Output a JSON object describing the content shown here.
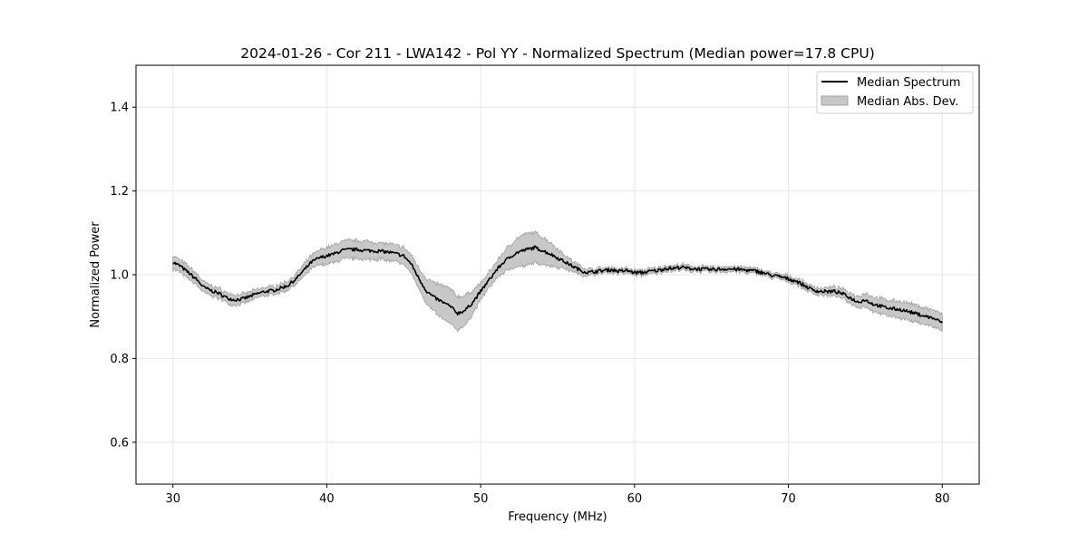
{
  "chart_data": {
    "type": "line",
    "title": "2024-01-26 - Cor 211 - LWA142 - Pol YY - Normalized Spectrum (Median power=17.8 CPU)",
    "xlabel": "Frequency (MHz)",
    "ylabel": "Normalized Power",
    "xlim": [
      27.6,
      82.4
    ],
    "ylim": [
      0.5,
      1.5
    ],
    "x_ticks": [
      30,
      40,
      50,
      60,
      70,
      80
    ],
    "y_ticks": [
      0.6,
      0.8,
      1.0,
      1.2,
      1.4
    ],
    "x_tick_labels": [
      "30",
      "40",
      "50",
      "60",
      "70",
      "80"
    ],
    "y_tick_labels": [
      "0.6",
      "0.8",
      "1.0",
      "1.2",
      "1.4"
    ],
    "grid": true,
    "legend_position": "top-right",
    "colors": {
      "line": "#000000",
      "band": "#c8c8c8",
      "band_edge": "#a0a0a0",
      "grid": "#e6e6e6"
    },
    "series": [
      {
        "name": "Median Spectrum",
        "x": [
          30,
          30.5,
          31,
          31.5,
          32,
          32.5,
          33,
          33.5,
          34,
          34.5,
          35,
          35.5,
          36,
          36.5,
          37,
          37.5,
          38,
          38.5,
          39,
          39.5,
          40,
          40.5,
          41,
          41.5,
          42,
          42.5,
          43,
          43.5,
          44,
          44.5,
          45,
          45.5,
          46,
          46.5,
          47,
          47.5,
          48,
          48.5,
          49,
          49.5,
          50,
          50.5,
          51,
          51.5,
          52,
          52.5,
          53,
          53.5,
          54,
          54.5,
          55,
          55.5,
          56,
          56.5,
          57,
          57.5,
          58,
          58.5,
          59,
          59.5,
          60,
          60.5,
          61,
          61.5,
          62,
          62.5,
          63,
          63.5,
          64,
          64.5,
          65,
          65.5,
          66,
          66.5,
          67,
          67.5,
          68,
          68.5,
          69,
          69.5,
          70,
          70.5,
          71,
          71.5,
          72,
          72.5,
          73,
          73.5,
          74,
          74.5,
          75,
          75.5,
          76,
          76.5,
          77,
          77.5,
          78,
          78.5,
          79,
          79.5,
          80
        ],
        "values": [
          1.03,
          1.02,
          1.005,
          0.99,
          0.97,
          0.962,
          0.955,
          0.945,
          0.94,
          0.942,
          0.948,
          0.955,
          0.96,
          0.962,
          0.968,
          0.975,
          0.99,
          1.01,
          1.03,
          1.04,
          1.045,
          1.05,
          1.058,
          1.06,
          1.06,
          1.058,
          1.057,
          1.056,
          1.054,
          1.05,
          1.045,
          1.025,
          0.99,
          0.96,
          0.945,
          0.935,
          0.925,
          0.908,
          0.915,
          0.935,
          0.96,
          0.985,
          1.01,
          1.03,
          1.045,
          1.055,
          1.06,
          1.065,
          1.058,
          1.05,
          1.04,
          1.03,
          1.02,
          1.01,
          1.005,
          1.008,
          1.01,
          1.012,
          1.008,
          1.01,
          1.005,
          1.005,
          1.008,
          1.01,
          1.015,
          1.015,
          1.018,
          1.015,
          1.014,
          1.013,
          1.012,
          1.013,
          1.014,
          1.013,
          1.012,
          1.01,
          1.008,
          1.003,
          0.998,
          0.995,
          0.99,
          0.985,
          0.975,
          0.965,
          0.96,
          0.96,
          0.96,
          0.955,
          0.945,
          0.935,
          0.94,
          0.93,
          0.925,
          0.92,
          0.918,
          0.915,
          0.91,
          0.905,
          0.9,
          0.895,
          0.885
        ]
      },
      {
        "name": "Median Abs. Dev.",
        "x": [
          30,
          30.5,
          31,
          31.5,
          32,
          32.5,
          33,
          33.5,
          34,
          34.5,
          35,
          35.5,
          36,
          36.5,
          37,
          37.5,
          38,
          38.5,
          39,
          39.5,
          40,
          40.5,
          41,
          41.5,
          42,
          42.5,
          43,
          43.5,
          44,
          44.5,
          45,
          45.5,
          46,
          46.5,
          47,
          47.5,
          48,
          48.5,
          49,
          49.5,
          50,
          50.5,
          51,
          51.5,
          52,
          52.5,
          53,
          53.5,
          54,
          54.5,
          55,
          55.5,
          56,
          56.5,
          57,
          57.5,
          58,
          58.5,
          59,
          59.5,
          60,
          60.5,
          61,
          61.5,
          62,
          62.5,
          63,
          63.5,
          64,
          64.5,
          65,
          65.5,
          66,
          66.5,
          67,
          67.5,
          68,
          68.5,
          69,
          69.5,
          70,
          70.5,
          71,
          71.5,
          72,
          72.5,
          73,
          73.5,
          74,
          74.5,
          75,
          75.5,
          76,
          76.5,
          77,
          77.5,
          78,
          78.5,
          79,
          79.5,
          80
        ],
        "deviation": [
          0.015,
          0.015,
          0.015,
          0.014,
          0.013,
          0.012,
          0.012,
          0.012,
          0.012,
          0.011,
          0.011,
          0.01,
          0.01,
          0.01,
          0.01,
          0.011,
          0.012,
          0.014,
          0.016,
          0.018,
          0.02,
          0.021,
          0.022,
          0.022,
          0.022,
          0.022,
          0.021,
          0.02,
          0.02,
          0.02,
          0.02,
          0.022,
          0.025,
          0.03,
          0.035,
          0.04,
          0.042,
          0.04,
          0.035,
          0.028,
          0.02,
          0.018,
          0.02,
          0.025,
          0.03,
          0.035,
          0.038,
          0.036,
          0.033,
          0.028,
          0.022,
          0.016,
          0.012,
          0.01,
          0.008,
          0.007,
          0.006,
          0.006,
          0.006,
          0.006,
          0.006,
          0.006,
          0.006,
          0.006,
          0.006,
          0.006,
          0.006,
          0.006,
          0.006,
          0.006,
          0.006,
          0.006,
          0.006,
          0.006,
          0.006,
          0.006,
          0.006,
          0.006,
          0.006,
          0.006,
          0.007,
          0.007,
          0.008,
          0.008,
          0.008,
          0.009,
          0.01,
          0.011,
          0.012,
          0.014,
          0.016,
          0.017,
          0.018,
          0.019,
          0.02,
          0.02,
          0.02,
          0.02,
          0.02,
          0.02,
          0.02
        ]
      }
    ]
  }
}
